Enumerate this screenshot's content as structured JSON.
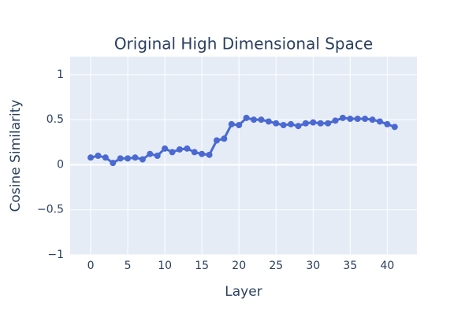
{
  "chart_data": {
    "type": "line",
    "title": "Original High Dimensional Space",
    "x_label": "Layer",
    "y_label": "Cosine Similarity",
    "x": [
      0,
      1,
      2,
      3,
      4,
      5,
      6,
      7,
      8,
      9,
      10,
      11,
      12,
      13,
      14,
      15,
      16,
      17,
      18,
      19,
      20,
      21,
      22,
      23,
      24,
      25,
      26,
      27,
      28,
      29,
      30,
      31,
      32,
      33,
      34,
      35,
      36,
      37,
      38,
      39,
      40,
      41
    ],
    "series": [
      {
        "name": "Cosine Similarity",
        "color": "#4a69d2",
        "values": [
          0.08,
          0.1,
          0.08,
          0.02,
          0.07,
          0.07,
          0.08,
          0.06,
          0.12,
          0.1,
          0.18,
          0.14,
          0.17,
          0.18,
          0.14,
          0.12,
          0.11,
          0.27,
          0.29,
          0.45,
          0.44,
          0.52,
          0.5,
          0.5,
          0.48,
          0.46,
          0.44,
          0.45,
          0.43,
          0.46,
          0.47,
          0.46,
          0.46,
          0.49,
          0.52,
          0.51,
          0.51,
          0.51,
          0.5,
          0.48,
          0.45,
          0.42
        ]
      }
    ],
    "xlim": [
      -2.77,
      44.0
    ],
    "ylim": [
      -1,
      1.2
    ],
    "xticks": [
      0,
      5,
      10,
      15,
      20,
      25,
      30,
      35,
      40
    ],
    "yticks": [
      {
        "value": -1,
        "label": "−1"
      },
      {
        "value": -0.5,
        "label": "−0.5"
      },
      0,
      0.5,
      1
    ],
    "grid": true
  }
}
